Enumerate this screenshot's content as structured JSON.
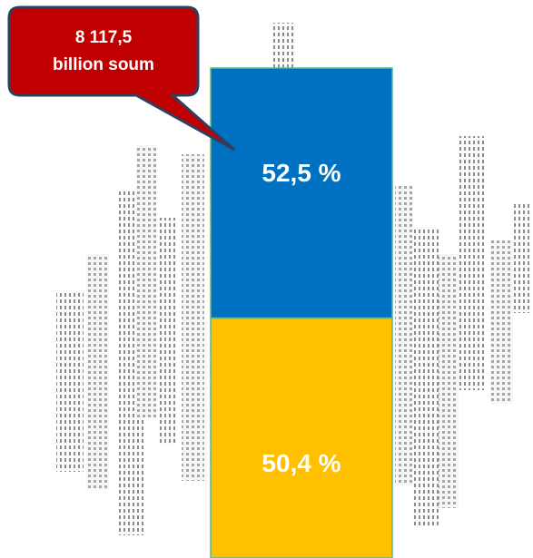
{
  "chart_data": {
    "type": "stacked-bar",
    "categories": [
      null
    ],
    "series": [
      {
        "color": "#ffc000",
        "values": [
          50.4
        ],
        "value_labels": [
          "50,4 %"
        ]
      },
      {
        "color": "#0070c0",
        "values": [
          52.5
        ],
        "value_labels": [
          "52,5 %"
        ]
      }
    ],
    "annotation": [
      "8 117,5",
      "billion soum"
    ],
    "annotation_color": "#c00000"
  }
}
